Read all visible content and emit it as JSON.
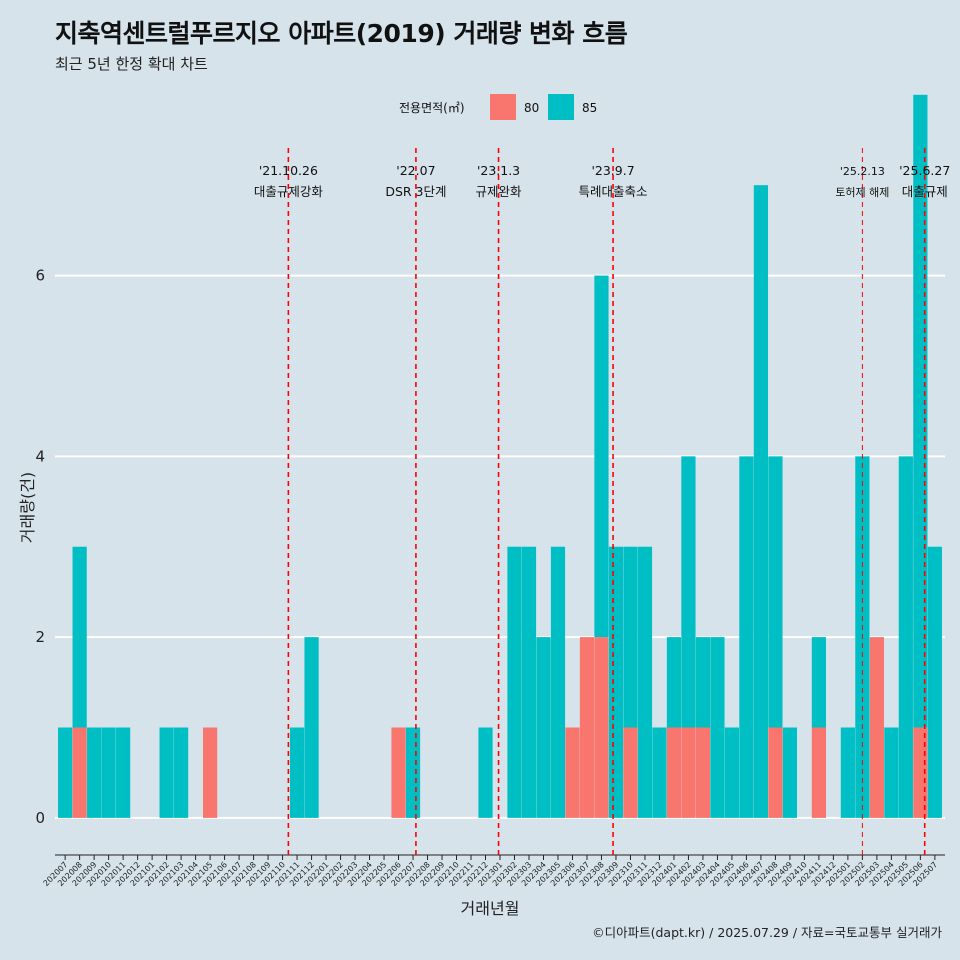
{
  "title": "지축역센트럴푸르지오 아파트(2019) 거래량 변화 흐름",
  "subtitle": "최근 5년 한정 확대 차트",
  "caption": "©디아파트(dapt.kr) / 2025.07.29 / 자료=국토교통부 실거래가",
  "colors": {
    "background": "#d6e3ea",
    "s80": "#f8766d",
    "s85": "#00bfc4",
    "event_line": "#ff0000",
    "grid": "#ffffff"
  },
  "chart_data": {
    "type": "bar",
    "xlabel": "거래년월",
    "ylabel": "거래량(건)",
    "ylim": [
      -0.3,
      7.5
    ],
    "yticks": [
      0,
      2,
      4,
      6
    ],
    "grid": true,
    "legend": {
      "title": "전용면적(㎡)",
      "position": "top",
      "entries": [
        "80",
        "85"
      ]
    },
    "months": [
      "202007",
      "202008",
      "202009",
      "202010",
      "202011",
      "202012",
      "202101",
      "202102",
      "202103",
      "202104",
      "202105",
      "202106",
      "202107",
      "202108",
      "202109",
      "202110",
      "202111",
      "202112",
      "202201",
      "202202",
      "202203",
      "202204",
      "202205",
      "202206",
      "202207",
      "202208",
      "202209",
      "202210",
      "202211",
      "202212",
      "202301",
      "202302",
      "202303",
      "202304",
      "202305",
      "202306",
      "202307",
      "202308",
      "202309",
      "202310",
      "202311",
      "202312",
      "202401",
      "202402",
      "202403",
      "202404",
      "202405",
      "202406",
      "202407",
      "202408",
      "202409",
      "202410",
      "202411",
      "202412",
      "202501",
      "202502",
      "202503",
      "202504",
      "202505",
      "202506",
      "202507"
    ],
    "series": [
      {
        "name": "80",
        "values": [
          0,
          1,
          0,
          0,
          0,
          0,
          0,
          0,
          0,
          0,
          1,
          0,
          0,
          0,
          0,
          0,
          0,
          0,
          0,
          0,
          0,
          0,
          0,
          1,
          0,
          0,
          0,
          0,
          0,
          0,
          0,
          0,
          0,
          0,
          0,
          1,
          2,
          2,
          0,
          1,
          0,
          0,
          1,
          1,
          1,
          0,
          0,
          0,
          0,
          1,
          0,
          0,
          1,
          0,
          0,
          0,
          2,
          0,
          0,
          1,
          0
        ]
      },
      {
        "name": "85",
        "values": [
          1,
          2,
          1,
          1,
          1,
          0,
          0,
          1,
          1,
          0,
          0,
          0,
          0,
          0,
          0,
          0,
          1,
          2,
          0,
          0,
          0,
          0,
          0,
          0,
          1,
          0,
          0,
          0,
          0,
          1,
          0,
          3,
          3,
          2,
          3,
          0,
          0,
          4,
          3,
          2,
          3,
          1,
          1,
          3,
          1,
          2,
          1,
          4,
          7,
          3,
          1,
          0,
          1,
          0,
          1,
          4,
          0,
          1,
          4,
          7,
          3
        ]
      }
    ],
    "events": [
      {
        "date": "'21.10.26",
        "label": "대출규제강화",
        "month": "202110",
        "offset": 0.4
      },
      {
        "date": "'22.07",
        "label": "DSR 3단계",
        "month": "202207",
        "offset": 0.2
      },
      {
        "date": "'23.1.3",
        "label": "규제완화",
        "month": "202301",
        "offset": -0.1
      },
      {
        "date": "'23.9.7",
        "label": "특례대출축소",
        "month": "202309",
        "offset": -0.2
      },
      {
        "date": "'25.2.13",
        "label": "토허제 해제",
        "month": "202502",
        "offset": 0.0,
        "small": true
      },
      {
        "date": "'25.6.27",
        "label": "대출규제",
        "month": "202506",
        "offset": 0.3
      }
    ]
  }
}
